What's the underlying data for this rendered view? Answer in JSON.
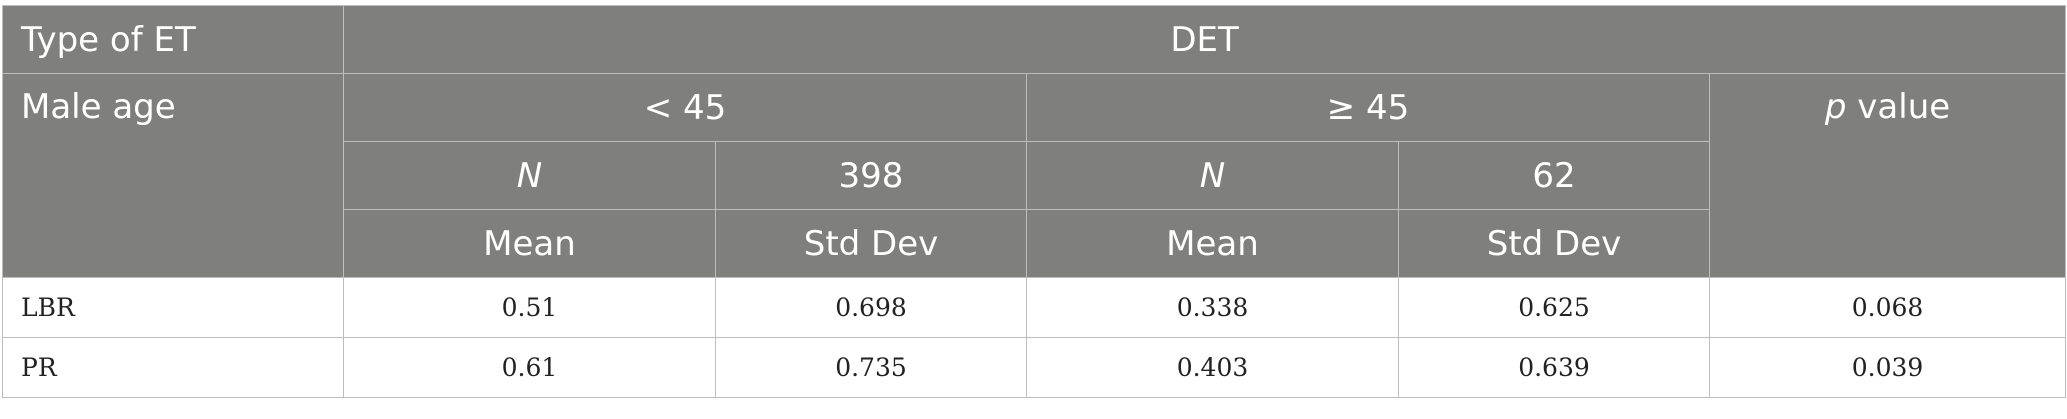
{
  "table": {
    "header": {
      "type_label": "Type of ET",
      "group_label": "DET",
      "male_age_label": "Male age",
      "age_under": "< 45",
      "age_over": "≥ 45",
      "p_label_italic": "p",
      "p_label_rest": " value",
      "n_label": "N",
      "n_under": "398",
      "n_over": "62",
      "mean_label": "Mean",
      "sd_label": "Std Dev"
    },
    "rows": [
      {
        "label": "LBR",
        "mean_under": "0.51",
        "sd_under": "0.698",
        "mean_over": "0.338",
        "sd_over": "0.625",
        "p": "0.068"
      },
      {
        "label": "PR",
        "mean_under": "0.61",
        "sd_under": "0.735",
        "mean_over": "0.403",
        "sd_over": "0.639",
        "p": "0.039"
      }
    ]
  }
}
